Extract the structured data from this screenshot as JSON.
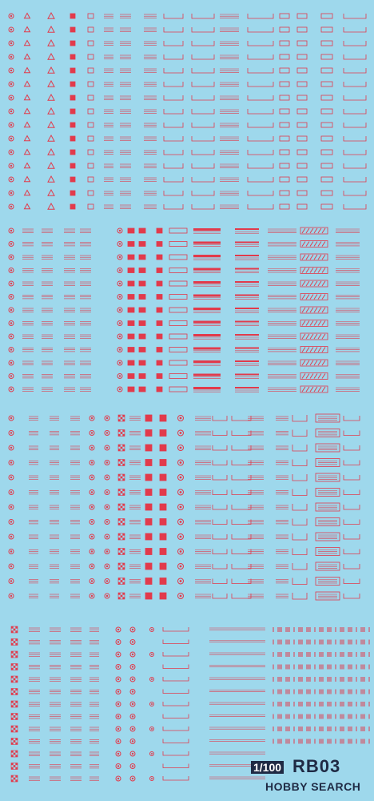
{
  "sheet": {
    "background": "#9ed8ec",
    "decal_color": "#e23a4b",
    "ink_color": "#1f2a44",
    "sections": 4
  },
  "brand": {
    "scale": "1/100",
    "code": "RB03",
    "wordmark": "HOBBY SEARCH"
  }
}
